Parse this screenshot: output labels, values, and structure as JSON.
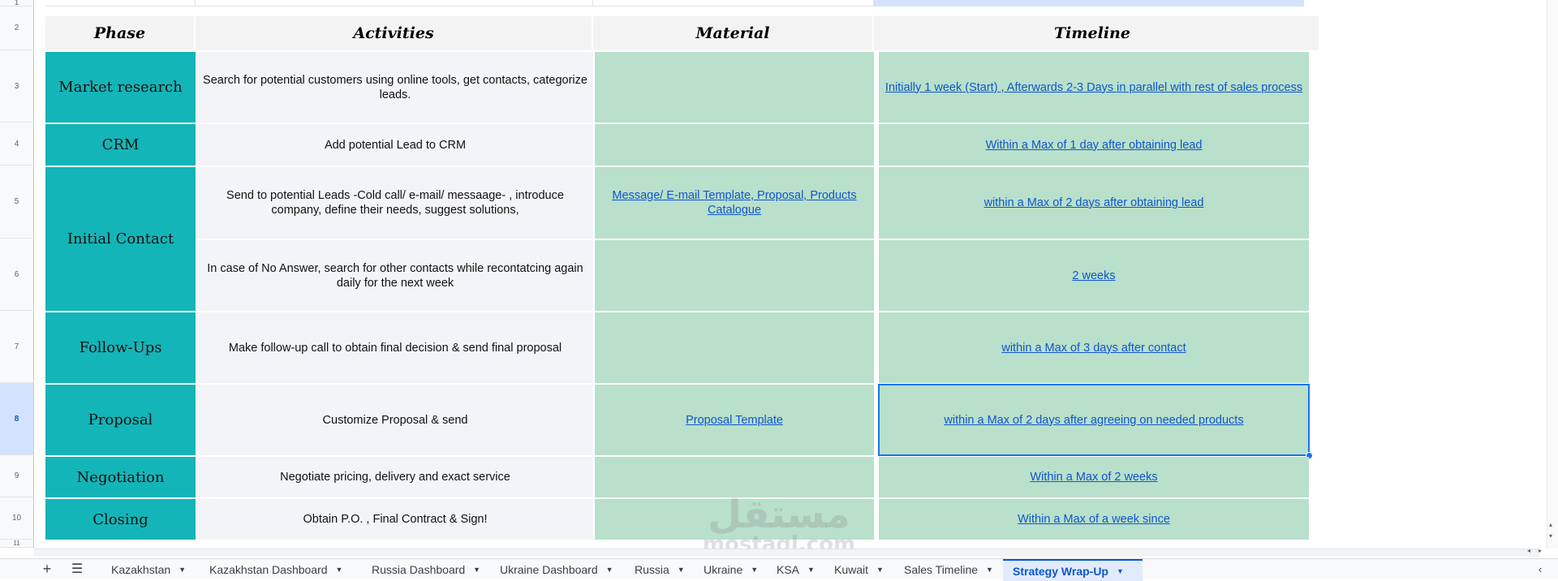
{
  "rows": [
    "1",
    "2",
    "3",
    "4",
    "5",
    "6",
    "7",
    "8",
    "9",
    "10",
    "11"
  ],
  "headers": {
    "phase": "Phase",
    "activities": "Activities",
    "material": "Material",
    "timeline": "Timeline"
  },
  "phases": {
    "market_research": "Market research",
    "crm": "CRM",
    "initial_contact": "Initial Contact",
    "follow_ups": "Follow-Ups",
    "proposal": "Proposal",
    "negotiation": "Negotiation",
    "closing": "Closing"
  },
  "activities": [
    "Search for potential customers using online tools, get contacts, categorize leads.",
    "Add potential Lead to  CRM",
    "Send to potential Leads -Cold call/ e-mail/ messaage- , introduce company, define their needs, suggest solutions,",
    "In case of No Answer, search for other contacts while recontatcing again daily for the next week",
    "Make follow-up call to obtain final decision & send final proposal",
    "Customize Proposal & send",
    "Negotiate pricing, delivery and exact service",
    "Obtain P.O. , Final Contract & Sign!"
  ],
  "materials": {
    "initial_contact": "Message/ E-mail Template, Proposal, Products Catalogue",
    "proposal": "Proposal Template"
  },
  "timelines": [
    "Initially 1 week (Start) , Afterwards 2-3 Days in parallel with rest of sales process",
    "Within a Max of 1 day after obtaining lead",
    "within a Max of 2 days after obtaining lead",
    "2 weeks",
    "within a Max of 3 days after contact",
    "within a Max of 2 days after agreeing on needed products",
    "Within a Max of 2  weeks",
    "Within a Max of a week since"
  ],
  "tabs": [
    "Kazakhstan",
    "Kazakhstan Dashboard",
    "Russia Dashboard",
    "Ukraine Dashboard",
    "Russia",
    "Ukraine",
    "KSA",
    "Kuwait",
    "Sales Timeline",
    "Strategy Wrap-Up"
  ],
  "active_tab": "Strategy Wrap-Up",
  "watermark": {
    "arabic": "مستقل",
    "latin": "mostaql.com"
  },
  "colors": {
    "phase": "#14b5b8",
    "material_timeline": "#b8e0cb",
    "link": "#1155cc",
    "selection": "#1a73e8"
  }
}
